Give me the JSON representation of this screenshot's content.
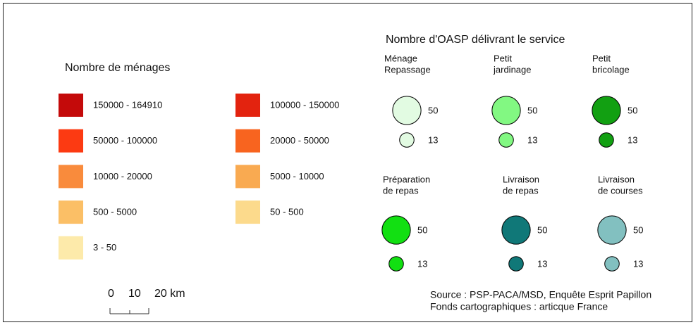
{
  "choropleth": {
    "title": "Nombre de ménages",
    "classes": [
      {
        "label": "150000 - 164910",
        "color": "#c40a0a"
      },
      {
        "label": "50000 - 100000",
        "color": "#fc3a12"
      },
      {
        "label": "10000 - 20000",
        "color": "#f98b3c"
      },
      {
        "label": "500 - 5000",
        "color": "#fbbf66"
      },
      {
        "label": "3 - 50",
        "color": "#fdeaaa"
      },
      {
        "label": "100000 - 150000",
        "color": "#e3230f"
      },
      {
        "label": "20000 - 50000",
        "color": "#f8641f"
      },
      {
        "label": "5000 - 10000",
        "color": "#f9aa51"
      },
      {
        "label": "50 - 500",
        "color": "#fcda8c"
      }
    ]
  },
  "symbols": {
    "title": "Nombre d'OASP délivrant le service",
    "sizes": [
      50,
      13
    ],
    "services": [
      {
        "label": [
          "Ménage",
          "Repassage"
        ],
        "color": "#e2fbe2"
      },
      {
        "label": [
          "Petit",
          "jardinage"
        ],
        "color": "#82f882"
      },
      {
        "label": [
          "Petit",
          "bricolage"
        ],
        "color": "#12a012"
      },
      {
        "label": [
          "Préparation",
          "de repas"
        ],
        "color": "#12e012"
      },
      {
        "label": [
          "Livraison",
          "de repas"
        ],
        "color": "#107878"
      },
      {
        "label": [
          "Livraison",
          "de courses"
        ],
        "color": "#82c0c0"
      }
    ]
  },
  "scale_bar": {
    "labels": [
      "0",
      "10",
      "20 km"
    ]
  },
  "source": [
    "Source : PSP-PACA/MSD, Enquête Esprit Papillon",
    "Fonds cartographiques : articque France"
  ]
}
